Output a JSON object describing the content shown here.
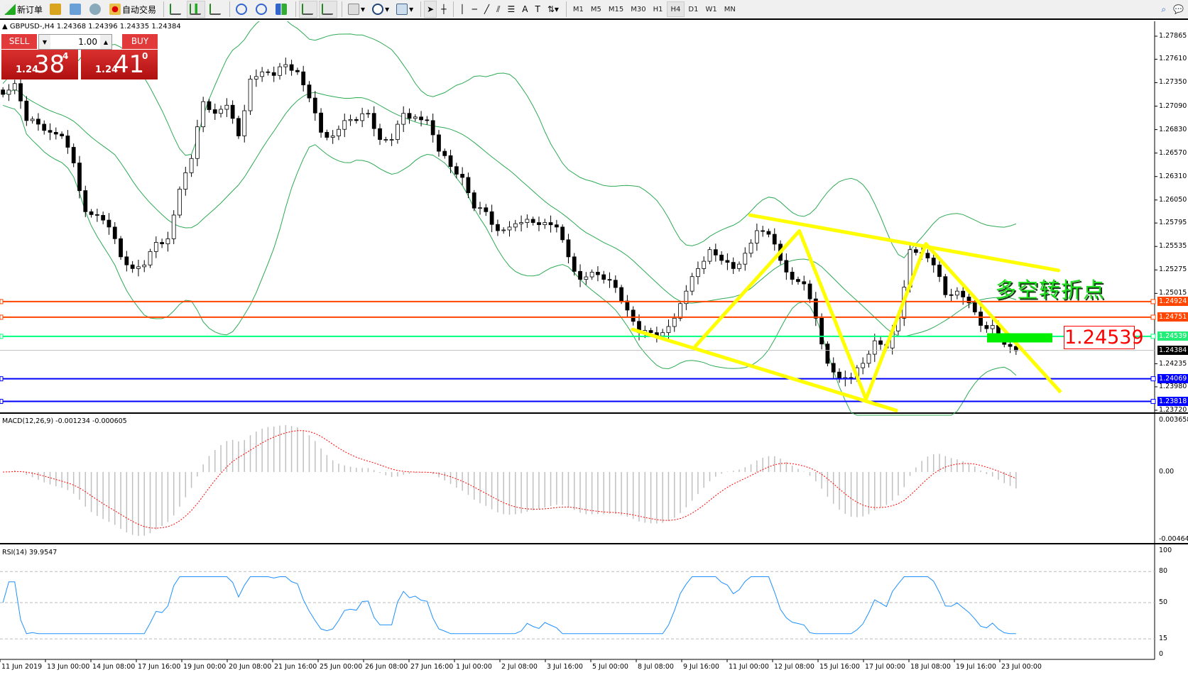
{
  "toolbar": {
    "new_order": "新订单",
    "auto_trading": "自动交易",
    "icons": [
      "new-order-icon",
      "market-watch-icon",
      "navigator-icon",
      "signals-icon",
      "auto-trading-icon",
      "bar-chart-icon",
      "candlestick-icon",
      "line-chart-icon",
      "zoom-in-icon",
      "zoom-out-icon",
      "tile-windows-icon",
      "chart-shift-icon",
      "autoscroll-icon",
      "indicators-icon",
      "periods-icon",
      "templates-icon",
      "cursor-icon",
      "crosshair-icon",
      "vertical-line-icon",
      "horizontal-line-icon",
      "trendline-icon",
      "equidistant-channel-icon",
      "fibonacci-icon",
      "text-icon",
      "text-label-icon",
      "arrows-icon",
      "search-icon",
      "chat-icon"
    ],
    "timeframes": [
      "M1",
      "M5",
      "M15",
      "M30",
      "H1",
      "H4",
      "D1",
      "W1",
      "MN"
    ],
    "active_timeframe": "H4"
  },
  "chart_header": "GBPUSD-,H4  1.24368 1.24396 1.24335 1.24384",
  "trade_panel": {
    "sell_label": "SELL",
    "buy_label": "BUY",
    "lot": "1.00",
    "sell_prefix": "1.24",
    "sell_big": "38",
    "sell_pip": "4",
    "buy_prefix": "1.24",
    "buy_big": "41",
    "buy_pip": "0"
  },
  "annotation": {
    "text": "多空转折点",
    "price_label": "1.24539"
  },
  "macd_label": "MACD(12,26,9) -0.001234 -0.000605",
  "rsi_label": "RSI(14) 39.9547",
  "chart_data": {
    "type": "candlestick",
    "symbol": "GBPUSD-",
    "timeframe": "H4",
    "price_ticks": [
      "1.27865",
      "1.27610",
      "1.27350",
      "1.27090",
      "1.26830",
      "1.26570",
      "1.26310",
      "1.26050",
      "1.25795",
      "1.25535",
      "1.25275",
      "1.25015",
      "1.24235",
      "1.23980",
      "1.23720"
    ],
    "ylim": [
      1.2372,
      1.2792
    ],
    "levels": [
      {
        "price": "1.24924",
        "color": "#ff4500"
      },
      {
        "price": "1.24751",
        "color": "#ff4500"
      },
      {
        "price": "1.24539",
        "color": "#00ff7f"
      },
      {
        "price": "1.24384",
        "color": "#000000"
      },
      {
        "price": "1.24069",
        "color": "#0000ff"
      },
      {
        "price": "1.23818",
        "color": "#0000ff"
      }
    ],
    "time_labels": [
      "11 Jun 2019",
      "13 Jun 00:00",
      "14 Jun 08:00",
      "17 Jun 16:00",
      "19 Jun 00:00",
      "20 Jun 08:00",
      "21 Jun 16:00",
      "25 Jun 00:00",
      "26 Jun 08:00",
      "27 Jun 16:00",
      "1 Jul 00:00",
      "2 Jul 08:00",
      "3 Jul 16:00",
      "5 Jul 00:00",
      "8 Jul 08:00",
      "9 Jul 16:00",
      "11 Jul 00:00",
      "12 Jul 08:00",
      "15 Jul 16:00",
      "17 Jul 00:00",
      "18 Jul 08:00",
      "19 Jul 16:00",
      "23 Jul 00:00"
    ],
    "closes": [
      1.2722,
      1.2734,
      1.2693,
      1.2689,
      1.268,
      1.2676,
      1.2646,
      1.2592,
      1.2588,
      1.2575,
      1.2542,
      1.2529,
      1.2533,
      1.2558,
      1.2562,
      1.2617,
      1.2651,
      1.2714,
      1.2701,
      1.271,
      1.2676,
      1.2739,
      1.2747,
      1.2743,
      1.2755,
      1.2747,
      1.2718,
      1.268,
      1.2676,
      1.2693,
      1.2693,
      1.2701,
      1.2672,
      1.2672,
      1.2701,
      1.2697,
      1.2693,
      1.2659,
      1.2642,
      1.263,
      1.2596,
      1.2592,
      1.2571,
      1.2575,
      1.258,
      1.258,
      1.258,
      1.2575,
      1.2542,
      1.2517,
      1.2525,
      1.2517,
      1.2508,
      1.2483,
      1.2458,
      1.2458,
      1.2458,
      1.2474,
      1.2504,
      1.2529,
      1.255,
      1.2538,
      1.2529,
      1.2546,
      1.2571,
      1.2567,
      1.2538,
      1.2517,
      1.2512,
      1.2474,
      1.2424,
      1.2407,
      1.2407,
      1.2424,
      1.2449,
      1.2441,
      1.2474,
      1.255,
      1.2546,
      1.2533,
      1.25,
      1.2504,
      1.2491,
      1.2466,
      1.2466,
      1.2445,
      1.2438
    ],
    "indicators": {
      "bollinger": {
        "color": "#2eaa55"
      },
      "macd": {
        "params": "12,26,9",
        "value": -0.001234,
        "signal": -0.000605,
        "ylim": [
          -0.004645,
          0.003658
        ],
        "ticks": [
          "0.003658",
          "0.00",
          "-0.004645"
        ]
      },
      "rsi": {
        "period": 14,
        "value": 39.9547,
        "levels": [
          "80",
          "50",
          "15"
        ],
        "ticks": [
          "100",
          "80",
          "50",
          "15",
          "0"
        ],
        "color": "#1e90ff"
      }
    }
  }
}
